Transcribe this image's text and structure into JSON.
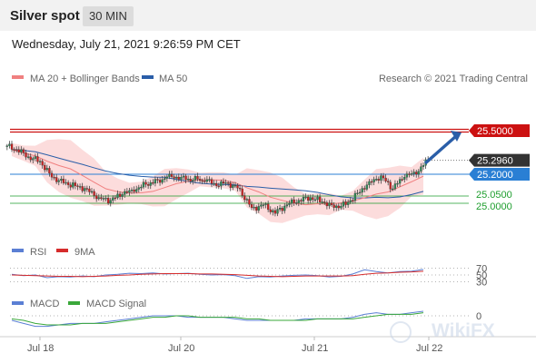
{
  "header": {
    "title": "Silver spot",
    "timeframe": "30 MIN"
  },
  "datetime": "Wednesday, July 21, 2021 9:26:59 PM CET",
  "legend": {
    "ma20_label": "MA 20 + Bollinger Bands",
    "ma50_label": "MA 50",
    "copyright": "Research © 2021 Trading Central",
    "rsi_label": "RSI",
    "rsi_ma_label": "9MA",
    "macd_label": "MACD",
    "macd_signal_label": "MACD Signal"
  },
  "watermark": "WikiFX",
  "colors": {
    "ma20": "#f08080",
    "bollinger": "#fbd0d0",
    "ma50": "#2a5ea8",
    "resistance": "#cc1111",
    "current": "#333333",
    "support": "#2a7fd4",
    "support_green": "#1e9e2e",
    "candle_up": "#2e8b57",
    "candle_down": "#cc2222",
    "rsi": "#5b7fd4",
    "rsi_ma": "#d62c2c",
    "macd": "#5b7fd4",
    "macd_signal": "#3aa83a",
    "arrow": "#2a5ea8"
  },
  "chart_data": [
    {
      "type": "candlestick",
      "title": "Silver spot",
      "timeframe": "30 MIN",
      "x_ticks": [
        "Jul 18",
        "Jul 20",
        "Jul 21",
        "Jul 22"
      ],
      "ylim": [
        24.75,
        25.75
      ],
      "levels": [
        {
          "label": "25.5000",
          "value": 25.5,
          "role": "resistance"
        },
        {
          "label": "25.2960",
          "value": 25.296,
          "role": "current"
        },
        {
          "label": "25.2000",
          "value": 25.2,
          "role": "support"
        },
        {
          "label": "25.0500",
          "value": 25.05,
          "role": "support"
        },
        {
          "label": "25.0000",
          "value": 25.0,
          "role": "support"
        }
      ],
      "close_series": [
        25.37,
        25.32,
        25.29,
        25.18,
        25.14,
        25.12,
        25.1,
        25.04,
        25.02,
        25.06,
        25.08,
        25.13,
        25.16,
        25.2,
        25.18,
        25.16,
        25.15,
        25.12,
        25.14,
        25.1,
        24.97,
        24.99,
        24.93,
        24.99,
        25.02,
        25.04,
        25.01,
        24.97,
        24.99,
        25.07,
        25.15,
        25.19,
        25.1,
        25.18,
        25.2,
        25.3
      ],
      "series": [
        {
          "name": "MA 20 + Bollinger Bands",
          "indicator": "ma20_bollinger"
        },
        {
          "name": "MA 50",
          "indicator": "ma50"
        }
      ]
    },
    {
      "type": "line",
      "title": "RSI",
      "x_ticks": [
        "Jul 18",
        "Jul 20",
        "Jul 21",
        "Jul 22"
      ],
      "ylim": [
        0,
        100
      ],
      "reference_levels": [
        70,
        50,
        30
      ],
      "series": [
        {
          "name": "RSI",
          "values": [
            52,
            48,
            50,
            42,
            45,
            44,
            47,
            45,
            50,
            52,
            55,
            54,
            56,
            53,
            54,
            55,
            52,
            50,
            51,
            48,
            40,
            45,
            44,
            47,
            49,
            50,
            48,
            44,
            46,
            53,
            65,
            60,
            56,
            60,
            61,
            66
          ]
        },
        {
          "name": "9MA",
          "values": [
            50,
            49,
            48,
            47,
            46,
            46,
            45,
            46,
            47,
            49,
            50,
            52,
            53,
            54,
            54,
            54,
            53,
            53,
            52,
            51,
            49,
            47,
            46,
            45,
            46,
            47,
            47,
            47,
            47,
            48,
            52,
            55,
            56,
            58,
            59,
            61
          ]
        }
      ]
    },
    {
      "type": "line",
      "title": "MACD",
      "x_ticks": [
        "Jul 18",
        "Jul 20",
        "Jul 21",
        "Jul 22"
      ],
      "ylim": [
        -0.12,
        0.06
      ],
      "reference_levels": [
        0
      ],
      "series": [
        {
          "name": "MACD",
          "values": [
            -0.03,
            -0.05,
            -0.07,
            -0.07,
            -0.06,
            -0.05,
            -0.05,
            -0.05,
            -0.04,
            -0.03,
            -0.02,
            -0.01,
            0.0,
            0.0,
            0.0,
            -0.01,
            -0.01,
            -0.01,
            -0.01,
            -0.02,
            -0.03,
            -0.03,
            -0.03,
            -0.03,
            -0.03,
            -0.02,
            -0.02,
            -0.02,
            -0.02,
            -0.01,
            0.01,
            0.02,
            0.01,
            0.01,
            0.02,
            0.03
          ]
        },
        {
          "name": "MACD Signal",
          "values": [
            -0.02,
            -0.03,
            -0.05,
            -0.06,
            -0.06,
            -0.06,
            -0.05,
            -0.05,
            -0.05,
            -0.04,
            -0.03,
            -0.02,
            -0.01,
            -0.01,
            0.0,
            0.0,
            -0.01,
            -0.01,
            -0.01,
            -0.01,
            -0.02,
            -0.02,
            -0.03,
            -0.03,
            -0.03,
            -0.03,
            -0.02,
            -0.02,
            -0.02,
            -0.02,
            -0.01,
            0.0,
            0.01,
            0.01,
            0.01,
            0.02
          ]
        }
      ]
    }
  ]
}
